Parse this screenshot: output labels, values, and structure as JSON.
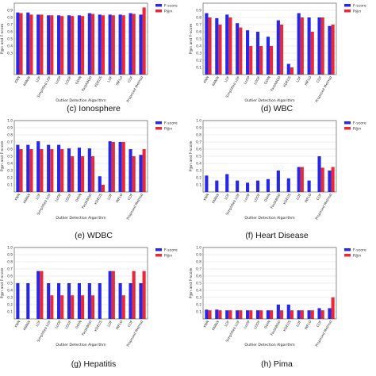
{
  "legend": {
    "fscore": "F-score",
    "pn": "P@n"
  },
  "colors": {
    "fscore": "#2727e8",
    "pn": "#e8293a"
  },
  "chart_data": [
    {
      "type": "bar",
      "caption": "",
      "xlabel": "",
      "ylabel": "P@n and F-score",
      "ylim": [
        0,
        1
      ],
      "yticks": [
        0.3,
        0.4,
        0.5,
        0.6,
        0.7,
        0.8,
        0.9
      ],
      "grid": true,
      "legend_position": "top-right",
      "categories": [
        "KNN",
        "KNNW",
        "LOF",
        "Simplified LOF",
        "LoOP",
        "LDOF",
        "ODIN",
        "FastABOD",
        "KDEOS",
        "LDF",
        "INFLO",
        "COF",
        "Proposed Method"
      ],
      "series": [
        {
          "name": "F-score",
          "values": [
            0.87,
            0.87,
            0.84,
            0.83,
            0.83,
            0.83,
            0.83,
            0.86,
            0.84,
            0.84,
            0.84,
            0.86,
            0.84
          ]
        },
        {
          "name": "P@n",
          "values": [
            0.86,
            0.84,
            0.84,
            0.83,
            0.82,
            0.82,
            0.82,
            0.85,
            0.83,
            0.83,
            0.83,
            0.85,
            0.94
          ]
        }
      ]
    },
    {
      "type": "bar",
      "caption": "(c) Ionosphere",
      "xlabel": "Outlier Detection Algorithm",
      "ylabel": "P@n and F-score",
      "ylim": [
        0,
        1
      ],
      "yticks": [
        0.1,
        0.2,
        0.3,
        0.4,
        0.5,
        0.6,
        0.7,
        0.8,
        0.9
      ],
      "grid": true,
      "legend_position": "top-right",
      "categories": [
        "KNN",
        "KNNW",
        "LOF",
        "Simplified LOF",
        "LoOP",
        "LDOF",
        "ODIN",
        "FastABOD",
        "KDEOS",
        "LDF",
        "INFLO",
        "COF",
        "Proposed Method"
      ],
      "series": [
        {
          "name": "F-score",
          "values": [
            0.86,
            0.79,
            0.84,
            0.72,
            0.62,
            0.6,
            0.53,
            0.76,
            0.15,
            0.86,
            0.8,
            0.8,
            0.68
          ]
        },
        {
          "name": "P@n",
          "values": [
            0.8,
            0.7,
            0.8,
            0.66,
            0.4,
            0.4,
            0.4,
            0.7,
            0.1,
            0.8,
            0.6,
            0.8,
            0.7
          ]
        }
      ]
    },
    {
      "type": "bar",
      "caption": "(d) WBC",
      "xlabel": "Outlier Detection Algorithm",
      "ylabel": "P@n and F-score",
      "ylim": [
        0,
        1
      ],
      "yticks": [
        0.1,
        0.2,
        0.3,
        0.4,
        0.5,
        0.6,
        0.7,
        0.8,
        0.9,
        1.0
      ],
      "grid": true,
      "legend_position": "top-right",
      "categories": [
        "KNN",
        "KNNW",
        "LOF",
        "Simplified LOF",
        "LoOP",
        "LDOF",
        "ODIN",
        "FastABOD",
        "KDEOS",
        "LDF",
        "INFLO",
        "COF",
        "Proposed Method"
      ],
      "series": [
        {
          "name": "F-score",
          "values": [
            0.66,
            0.66,
            0.71,
            0.66,
            0.66,
            0.61,
            0.62,
            0.61,
            0.22,
            0.71,
            0.7,
            0.6,
            0.52
          ]
        },
        {
          "name": "P@n",
          "values": [
            0.6,
            0.6,
            0.6,
            0.6,
            0.6,
            0.5,
            0.5,
            0.5,
            0.1,
            0.7,
            0.7,
            0.5,
            0.6
          ]
        }
      ]
    },
    {
      "type": "bar",
      "caption": "(e) WDBC",
      "xlabel": "Outlier Detection Algorithm",
      "ylabel": "P@n and F-score",
      "ylim": [
        0,
        1
      ],
      "yticks": [
        0.1,
        0.2,
        0.3,
        0.4,
        0.5,
        0.6,
        0.7,
        0.8,
        0.9,
        1.0
      ],
      "grid": true,
      "legend_position": "top-right",
      "categories": [
        "KNN",
        "KNNW",
        "LOF",
        "Simplified LOF",
        "LoOP",
        "LDOF",
        "ODIN",
        "FastABOD",
        "KDEOS",
        "LDF",
        "INFLO",
        "COF",
        "Proposed Method"
      ],
      "series": [
        {
          "name": "F-score",
          "values": [
            0.23,
            0.16,
            0.25,
            0.16,
            0.13,
            0.16,
            0.18,
            0.3,
            0.19,
            0.35,
            0.16,
            0.5,
            0.3
          ]
        },
        {
          "name": "P@n",
          "values": [
            0.0,
            0.0,
            0.0,
            0.0,
            0.0,
            0.0,
            0.0,
            0.0,
            0.0,
            0.35,
            0.0,
            0.34,
            0.35
          ]
        }
      ]
    },
    {
      "type": "bar",
      "caption": "(f) Heart Disease",
      "xlabel": "Outlier Detection Algorithm",
      "ylabel": "P@n and F-score",
      "ylim": [
        0,
        1
      ],
      "yticks": [
        0.1,
        0.2,
        0.3,
        0.4,
        0.5,
        0.6,
        0.7,
        0.8,
        0.9,
        1.0
      ],
      "grid": true,
      "legend_position": "top-right",
      "categories": [
        "KNN",
        "KNNW",
        "LOF",
        "Simplified LOF",
        "LoOP",
        "LDOF",
        "ODIN",
        "FastABOD",
        "KDEOS",
        "LDF",
        "INFLO",
        "COF",
        "Proposed Method"
      ],
      "series": [
        {
          "name": "F-score",
          "values": [
            0.5,
            0.5,
            0.67,
            0.5,
            0.5,
            0.5,
            0.5,
            0.5,
            0.5,
            0.67,
            0.5,
            0.5,
            0.5
          ]
        },
        {
          "name": "P@n",
          "values": [
            0.0,
            0.0,
            0.67,
            0.33,
            0.33,
            0.33,
            0.33,
            0.33,
            0.0,
            0.67,
            0.33,
            0.67,
            0.67
          ]
        }
      ]
    },
    {
      "type": "bar",
      "caption": "(g) Hepatitis",
      "xlabel": "Outlier Detection Algorithm",
      "ylabel": "P@n and F-score",
      "ylim": [
        0,
        1
      ],
      "yticks": [
        0.1,
        0.2,
        0.3,
        0.4,
        0.5,
        0.6,
        0.7,
        0.8,
        0.9,
        1.0
      ],
      "grid": true,
      "legend_position": "top-right",
      "categories": [
        "KNN",
        "KNNW",
        "LOF",
        "Simplified LOF",
        "LoOP",
        "LDOF",
        "ODIN",
        "FastABOD",
        "KDEOS",
        "LDF",
        "INFLO",
        "COF",
        "Proposed Method"
      ],
      "series": [
        {
          "name": "F-score",
          "values": [
            0.13,
            0.13,
            0.12,
            0.12,
            0.12,
            0.12,
            0.12,
            0.2,
            0.2,
            0.12,
            0.12,
            0.15,
            0.15
          ]
        },
        {
          "name": "P@n",
          "values": [
            0.12,
            0.12,
            0.12,
            0.12,
            0.12,
            0.12,
            0.12,
            0.12,
            0.12,
            0.12,
            0.12,
            0.12,
            0.3
          ]
        }
      ]
    }
  ],
  "panel_g_caption": "",
  "captions_extra": [
    "(g) Hepatitis",
    "(h) Pima"
  ]
}
